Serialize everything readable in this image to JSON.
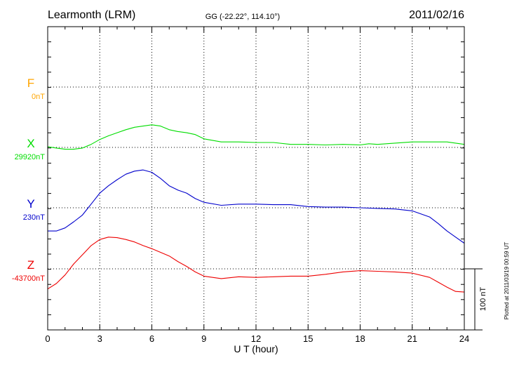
{
  "header": {
    "station": "Learmonth (LRM)",
    "coords": "GG (-22.22°, 114.10°)",
    "date": "2011/02/16"
  },
  "footer": {
    "plotted": "Plotted at 2011/03/19 00:59 UT",
    "scale_label": "100 nT"
  },
  "colors": {
    "F": "#ffa500",
    "X": "#00dd00",
    "Y": "#0000cc",
    "Z": "#ee0000"
  },
  "chart_data": {
    "type": "line",
    "title": "Learmonth (LRM)",
    "xlabel": "U T (hour)",
    "xlim": [
      0,
      24
    ],
    "xticks": [
      "0",
      "3",
      "6",
      "9",
      "12",
      "15",
      "18",
      "21",
      "24"
    ],
    "scale_nT": 100,
    "grid": true,
    "series": [
      {
        "name": "F",
        "baseline_label": "0nT",
        "x": [],
        "values": []
      },
      {
        "name": "X",
        "baseline_label": "29920nT",
        "x": [
          0,
          0.5,
          1,
          1.5,
          2,
          2.5,
          3,
          3.5,
          4,
          4.5,
          5,
          5.5,
          6,
          6.5,
          7,
          7.5,
          8,
          8.5,
          9,
          10,
          11,
          12,
          13,
          14,
          15,
          16,
          17,
          18,
          18.5,
          19,
          20,
          21,
          22,
          23,
          24
        ],
        "values": [
          29921,
          29919,
          29917,
          29917,
          29919,
          29925,
          29933,
          29939,
          29944,
          29949,
          29953,
          29955,
          29957,
          29955,
          29949,
          29946,
          29944,
          29941,
          29934,
          29929,
          29929,
          29928,
          29928,
          29925,
          29925,
          29924,
          29925,
          29924,
          29926,
          29925,
          29927,
          29929,
          29929,
          29929,
          29925
        ]
      },
      {
        "name": "Y",
        "baseline_label": "230nT",
        "x": [
          0,
          0.5,
          1,
          1.5,
          2,
          2.5,
          3,
          3.5,
          4,
          4.5,
          5,
          5.5,
          6,
          6.5,
          7,
          7.5,
          8,
          8.5,
          9,
          10,
          11,
          12,
          13,
          14,
          15,
          16,
          17,
          18,
          19,
          20,
          21,
          22,
          22.5,
          23,
          23.5,
          24
        ],
        "values": [
          192,
          192,
          197,
          207,
          218,
          236,
          254,
          266,
          276,
          285,
          290,
          292,
          288,
          278,
          266,
          259,
          254,
          245,
          239,
          234,
          236,
          236,
          235,
          235,
          232,
          231,
          231,
          230,
          229,
          228,
          225,
          215,
          204,
          192,
          182,
          172
        ]
      },
      {
        "name": "Z",
        "baseline_label": "-43700nT",
        "x": [
          0,
          0.5,
          1,
          1.5,
          2,
          2.5,
          3,
          3.5,
          4,
          4.5,
          5,
          5.5,
          6,
          6.5,
          7,
          7.5,
          8,
          8.5,
          9,
          10,
          11,
          12,
          13,
          14,
          15,
          16,
          17,
          18,
          19,
          20,
          21,
          22,
          22.5,
          23,
          23.5,
          24
        ],
        "values": [
          -43733,
          -43724,
          -43710,
          -43692,
          -43677,
          -43662,
          -43652,
          -43648,
          -43649,
          -43652,
          -43656,
          -43662,
          -43667,
          -43673,
          -43679,
          -43688,
          -43696,
          -43705,
          -43712,
          -43716,
          -43713,
          -43714,
          -43713,
          -43712,
          -43712,
          -43709,
          -43705,
          -43703,
          -43704,
          -43705,
          -43707,
          -43714,
          -43722,
          -43730,
          -43737,
          -43738
        ]
      }
    ]
  }
}
